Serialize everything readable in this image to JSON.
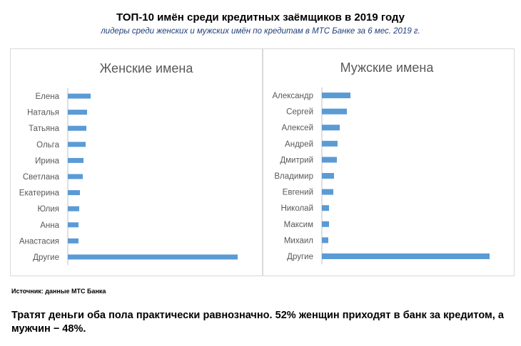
{
  "title": "ТОП-10 имён среди кредитных заёмщиков в 2019 году",
  "subtitle": "лидеры среди женских и мужских имён по кредитам в МТС Банке за 6 мес. 2019 г.",
  "colors": {
    "bar": "#5b9bd5",
    "axis": "#bfbfbf",
    "border": "#d9d9d9",
    "label": "#595959"
  },
  "chart_data": [
    {
      "type": "bar",
      "orientation": "horizontal",
      "title": "Женские имена",
      "categories": [
        "Елена",
        "Наталья",
        "Татьяна",
        "Ольга",
        "Ирина",
        "Светлана",
        "Екатерина",
        "Юлия",
        "Анна",
        "Анастасия",
        "Другие"
      ],
      "values": [
        3.2,
        2.7,
        2.6,
        2.5,
        2.2,
        2.1,
        1.7,
        1.6,
        1.5,
        1.5,
        23.8
      ],
      "xlim": [
        0,
        30
      ],
      "grid": false,
      "legend": "none"
    },
    {
      "type": "bar",
      "orientation": "horizontal",
      "title": "Мужские имена",
      "categories": [
        "Александр",
        "Сергей",
        "Алексей",
        "Андрей",
        "Дмитрий",
        "Владимир",
        "Евгений",
        "Николай",
        "Максим",
        "Михаил",
        "Другие"
      ],
      "values": [
        4.0,
        3.5,
        2.5,
        2.2,
        2.1,
        1.7,
        1.6,
        1.0,
        1.0,
        0.9,
        23.5
      ],
      "xlim": [
        0,
        30
      ],
      "grid": false,
      "legend": "none"
    }
  ],
  "source": "Источник: данные МТС Банка",
  "note": "Тратят деньги оба пола практически равнозначно. 52% женщин приходят в банк за кредитом, а мужчин − 48%."
}
